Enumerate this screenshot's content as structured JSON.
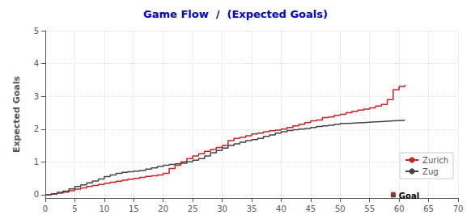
{
  "chart_data": {
    "type": "step",
    "title": "Game Flow  /  (Expected Goals)",
    "title_color": "#0000CC",
    "ylabel": "Expected Goals",
    "xlim": [
      0,
      70
    ],
    "ylim": [
      -0.1,
      5
    ],
    "xticks": [
      0,
      5,
      10,
      15,
      20,
      25,
      30,
      35,
      40,
      45,
      50,
      55,
      60,
      65,
      70
    ],
    "yticks": [
      0,
      1,
      2,
      3,
      4,
      5
    ],
    "grid": true,
    "legend": "lower right",
    "x": [
      0,
      1,
      2,
      3,
      4,
      5,
      6,
      7,
      8,
      9,
      10,
      11,
      12,
      13,
      14,
      15,
      16,
      17,
      18,
      19,
      20,
      21,
      22,
      23,
      24,
      25,
      26,
      27,
      28,
      29,
      30,
      31,
      32,
      33,
      34,
      35,
      36,
      37,
      38,
      39,
      40,
      41,
      42,
      43,
      44,
      45,
      46,
      47,
      48,
      49,
      50,
      51,
      52,
      53,
      54,
      55,
      56,
      57,
      58,
      59,
      60,
      61
    ],
    "series": [
      {
        "name": "Zurich",
        "color": "#cc2222",
        "values": [
          0,
          0.02,
          0.05,
          0.08,
          0.12,
          0.17,
          0.21,
          0.25,
          0.28,
          0.31,
          0.35,
          0.38,
          0.41,
          0.44,
          0.47,
          0.5,
          0.53,
          0.56,
          0.58,
          0.6,
          0.65,
          0.8,
          0.9,
          1.0,
          1.1,
          1.18,
          1.25,
          1.32,
          1.38,
          1.44,
          1.5,
          1.65,
          1.72,
          1.75,
          1.8,
          1.85,
          1.88,
          1.92,
          1.95,
          1.97,
          2.0,
          2.05,
          2.1,
          2.15,
          2.2,
          2.25,
          2.28,
          2.35,
          2.37,
          2.42,
          2.45,
          2.5,
          2.54,
          2.58,
          2.61,
          2.65,
          2.7,
          2.75,
          2.9,
          3.2,
          3.3,
          3.35
        ]
      },
      {
        "name": "Zug",
        "color": "#444444",
        "values": [
          0,
          0.03,
          0.07,
          0.11,
          0.18,
          0.25,
          0.3,
          0.36,
          0.42,
          0.48,
          0.55,
          0.6,
          0.65,
          0.68,
          0.7,
          0.72,
          0.74,
          0.78,
          0.82,
          0.86,
          0.9,
          0.92,
          0.94,
          0.96,
          1.0,
          1.05,
          1.1,
          1.18,
          1.28,
          1.35,
          1.42,
          1.5,
          1.55,
          1.6,
          1.65,
          1.68,
          1.72,
          1.78,
          1.82,
          1.88,
          1.92,
          1.96,
          1.98,
          2.0,
          2.02,
          2.05,
          2.08,
          2.1,
          2.12,
          2.15,
          2.17,
          2.18,
          2.19,
          2.2,
          2.21,
          2.22,
          2.23,
          2.24,
          2.25,
          2.26,
          2.27,
          2.28
        ]
      }
    ],
    "goal_events": [
      {
        "x": 59,
        "y_start": -0.08,
        "y_end": 0.08,
        "color": "#cc2222"
      },
      {
        "x": 59,
        "y_start": -0.08,
        "y_end": 0.0,
        "color": "#444444"
      }
    ],
    "annotations": [
      {
        "text": "Goal",
        "x": 59,
        "y": -0.05
      }
    ]
  }
}
